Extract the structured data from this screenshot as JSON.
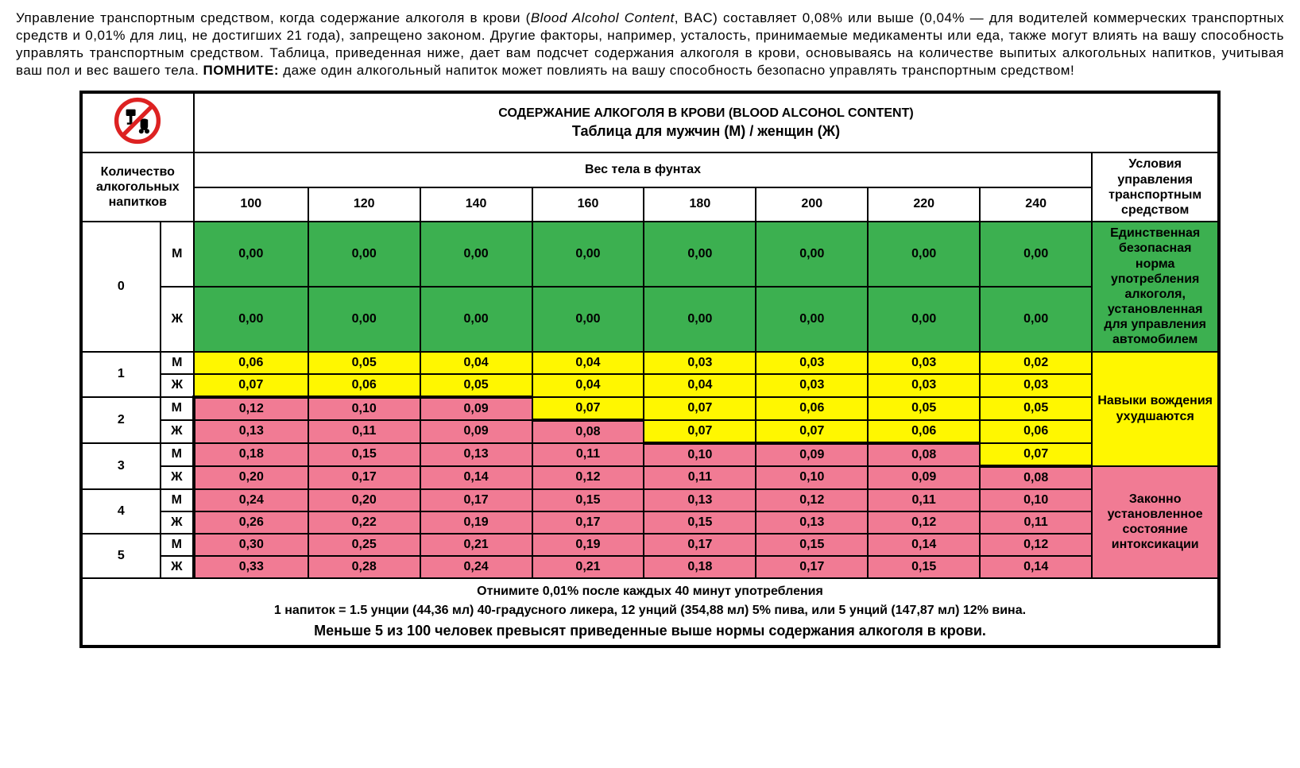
{
  "intro": {
    "part1": "Управление транспортным средством, когда содержание алкоголя в крови (",
    "italic": "Blood Alcohol Content",
    "part2": ", BAC) составляет 0,08% или выше (0,04% — для водителей коммерческих транспортных средств и 0,01% для лиц, не достигших 21 года), запрещено законом. Другие факторы, например, усталость, принимаемые медикаменты или еда, также могут влиять на вашу способность управлять транспортным средством. Таблица, приведенная ниже, дает вам подсчет содержания алкоголя в крови, основываясь на количестве выпитых алкогольных напитков, учитывая ваш пол и вес вашего тела. ",
    "bold": "ПОМНИТЕ:",
    "part3": " даже один алкогольный напиток может повлиять на вашу способность безопасно управлять транспортным средством!"
  },
  "title": {
    "main": "СОДЕРЖАНИЕ АЛКОГОЛЯ В КРОВИ (BLOOD ALCOHOL CONTENT)",
    "sub": "Таблица для мужчин (М) / женщин (Ж)"
  },
  "headers": {
    "drinks": "Количество алкогольных напитков",
    "weight": "Вес тела в фунтах",
    "condition": "Условия управления транспортным средством"
  },
  "weights": [
    "100",
    "120",
    "140",
    "160",
    "180",
    "200",
    "220",
    "240"
  ],
  "genders": {
    "m": "М",
    "f": "Ж"
  },
  "drinks": [
    "0",
    "1",
    "2",
    "3",
    "4",
    "5"
  ],
  "rows": [
    {
      "g": "m",
      "v": [
        "0,00",
        "0,00",
        "0,00",
        "0,00",
        "0,00",
        "0,00",
        "0,00",
        "0,00"
      ],
      "c": [
        "g",
        "g",
        "g",
        "g",
        "g",
        "g",
        "g",
        "g"
      ]
    },
    {
      "g": "f",
      "v": [
        "0,00",
        "0,00",
        "0,00",
        "0,00",
        "0,00",
        "0,00",
        "0,00",
        "0,00"
      ],
      "c": [
        "g",
        "g",
        "g",
        "g",
        "g",
        "g",
        "g",
        "g"
      ]
    },
    {
      "g": "m",
      "v": [
        "0,06",
        "0,05",
        "0,04",
        "0,04",
        "0,03",
        "0,03",
        "0,03",
        "0,02"
      ],
      "c": [
        "y",
        "y",
        "y",
        "y",
        "y",
        "y",
        "y",
        "y"
      ]
    },
    {
      "g": "f",
      "v": [
        "0,07",
        "0,06",
        "0,05",
        "0,04",
        "0,04",
        "0,03",
        "0,03",
        "0,03"
      ],
      "c": [
        "y",
        "y",
        "y",
        "y",
        "y",
        "y",
        "y",
        "y"
      ]
    },
    {
      "g": "m",
      "v": [
        "0,12",
        "0,10",
        "0,09",
        "0,07",
        "0,07",
        "0,06",
        "0,05",
        "0,05"
      ],
      "c": [
        "p",
        "p",
        "p",
        "y",
        "y",
        "y",
        "y",
        "y"
      ]
    },
    {
      "g": "f",
      "v": [
        "0,13",
        "0,11",
        "0,09",
        "0,08",
        "0,07",
        "0,07",
        "0,06",
        "0,06"
      ],
      "c": [
        "p",
        "p",
        "p",
        "p",
        "y",
        "y",
        "y",
        "y"
      ]
    },
    {
      "g": "m",
      "v": [
        "0,18",
        "0,15",
        "0,13",
        "0,11",
        "0,10",
        "0,09",
        "0,08",
        "0,07"
      ],
      "c": [
        "p",
        "p",
        "p",
        "p",
        "p",
        "p",
        "p",
        "y"
      ]
    },
    {
      "g": "f",
      "v": [
        "0,20",
        "0,17",
        "0,14",
        "0,12",
        "0,11",
        "0,10",
        "0,09",
        "0,08"
      ],
      "c": [
        "p",
        "p",
        "p",
        "p",
        "p",
        "p",
        "p",
        "p"
      ]
    },
    {
      "g": "m",
      "v": [
        "0,24",
        "0,20",
        "0,17",
        "0,15",
        "0,13",
        "0,12",
        "0,11",
        "0,10"
      ],
      "c": [
        "p",
        "p",
        "p",
        "p",
        "p",
        "p",
        "p",
        "p"
      ]
    },
    {
      "g": "f",
      "v": [
        "0,26",
        "0,22",
        "0,19",
        "0,17",
        "0,15",
        "0,13",
        "0,12",
        "0,11"
      ],
      "c": [
        "p",
        "p",
        "p",
        "p",
        "p",
        "p",
        "p",
        "p"
      ]
    },
    {
      "g": "m",
      "v": [
        "0,30",
        "0,25",
        "0,21",
        "0,19",
        "0,17",
        "0,15",
        "0,14",
        "0,12"
      ],
      "c": [
        "p",
        "p",
        "p",
        "p",
        "p",
        "p",
        "p",
        "p"
      ]
    },
    {
      "g": "f",
      "v": [
        "0,33",
        "0,28",
        "0,24",
        "0,21",
        "0,18",
        "0,17",
        "0,15",
        "0,14"
      ],
      "c": [
        "p",
        "p",
        "p",
        "p",
        "p",
        "p",
        "p",
        "p"
      ]
    }
  ],
  "conditions": {
    "safe": "Единственная безопасная норма употребления алкоголя, установленная для управления автомобилем",
    "impaired": "Навыки вождения ухудшаются",
    "intox": "Законно установленное состояние интоксикации"
  },
  "footer": {
    "l1": "Отнимите 0,01% после каждых 40 минут употребления",
    "l2": "1 напиток = 1.5 унции (44,36 мл) 40-градусного ликера, 12 унций (354,88 мл) 5% пива, или 5 унций (147,87 мл) 12% вина.",
    "l3": "Меньше 5 из 100 человек превысят приведенные выше нормы содержания алкоголя в крови."
  },
  "colors": {
    "green": "#3cb050",
    "yellow": "#fff700",
    "pink": "#f17b94",
    "border": "#000000",
    "text": "#000000",
    "bg": "#ffffff"
  },
  "typography": {
    "intro_fontsize": 17,
    "title_fontsize": 20,
    "cell_fontsize": 16,
    "cond_fontsize": 14
  },
  "thick_boundary": [
    {
      "row": 4,
      "cols": [
        0,
        1,
        2
      ]
    },
    {
      "row": 5,
      "cols": [
        3
      ]
    },
    {
      "row": 6,
      "cols": [
        4,
        5,
        6
      ]
    },
    {
      "row": 7,
      "cols": [
        7
      ]
    }
  ]
}
